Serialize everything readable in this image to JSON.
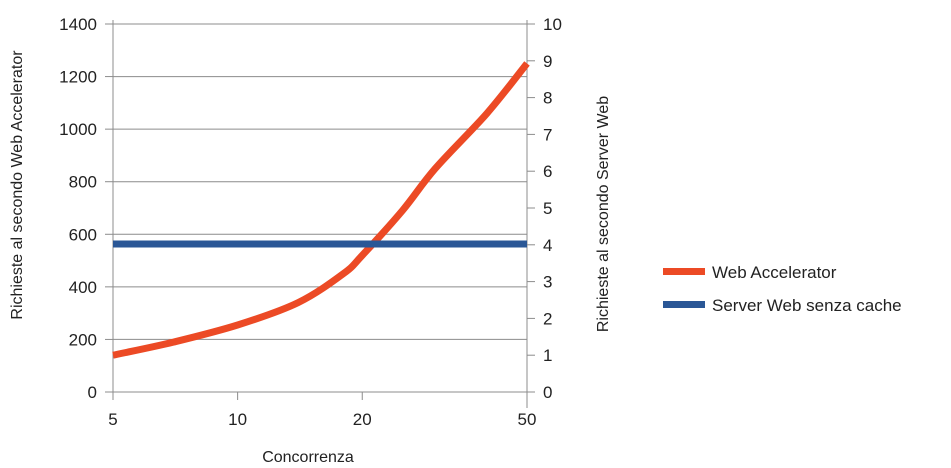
{
  "chart_data": {
    "type": "line",
    "x_scale": "log",
    "x_ticks": [
      "5",
      "10",
      "20",
      "50"
    ],
    "xlabel": "Concorrenza",
    "ylabel_left": "Richieste al secondo Web Accelerator",
    "ylabel_right": "Richieste al secondo Server Web",
    "ylim_left": [
      0,
      1400
    ],
    "ylim_right": [
      0,
      10
    ],
    "y_ticks_left": [
      "0",
      "200",
      "400",
      "600",
      "800",
      "1000",
      "1200",
      "1400"
    ],
    "y_ticks_right": [
      "0",
      "1",
      "2",
      "3",
      "4",
      "5",
      "6",
      "7",
      "8",
      "9",
      "10"
    ],
    "grid": true,
    "legend_position": "right",
    "series": [
      {
        "name": "Web Accelerator",
        "axis": "left",
        "color": "#ec4a25",
        "x": [
          5,
          7,
          10,
          14,
          18,
          20,
          25,
          30,
          40,
          50
        ],
        "y": [
          140,
          190,
          255,
          340,
          450,
          520,
          690,
          850,
          1060,
          1250
        ]
      },
      {
        "name": "Server Web senza cache",
        "axis": "left",
        "color": "#2a5796",
        "x": [
          5,
          50
        ],
        "y": [
          563,
          563
        ]
      }
    ]
  }
}
